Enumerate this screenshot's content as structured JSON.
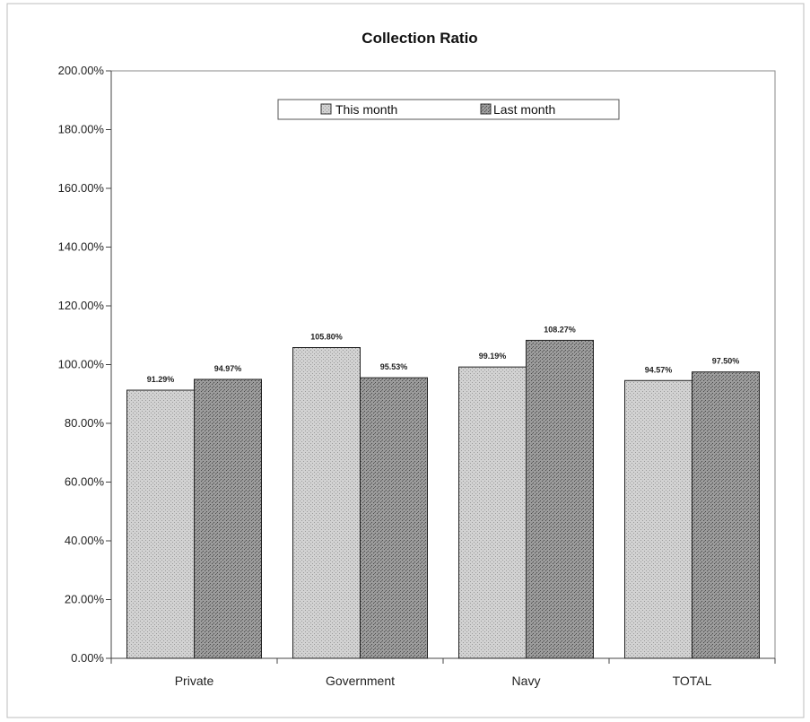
{
  "chart_data": {
    "type": "bar",
    "title": "Collection Ratio",
    "xlabel": "",
    "ylabel": "",
    "categories": [
      "Private",
      "Government",
      "Navy",
      "TOTAL"
    ],
    "series": [
      {
        "name": "This month",
        "values": [
          91.29,
          105.8,
          99.19,
          94.57
        ],
        "labels": [
          "91.29%",
          "105.80%",
          "99.19%",
          "94.57%"
        ],
        "color": "#c4c4c4"
      },
      {
        "name": "Last month",
        "values": [
          94.97,
          95.53,
          108.27,
          97.5
        ],
        "labels": [
          "94.97%",
          "95.53%",
          "108.27%",
          "97.50%"
        ],
        "color": "#8f8f8f"
      }
    ],
    "ylim": [
      0,
      200
    ],
    "yticks": [
      0,
      20,
      40,
      60,
      80,
      100,
      120,
      140,
      160,
      180,
      200
    ],
    "ytick_labels": [
      "0.00%",
      "20.00%",
      "40.00%",
      "60.00%",
      "80.00%",
      "100.00%",
      "120.00%",
      "140.00%",
      "160.00%",
      "180.00%",
      "200.00%"
    ],
    "grid": false,
    "legend_position": "top-center"
  }
}
